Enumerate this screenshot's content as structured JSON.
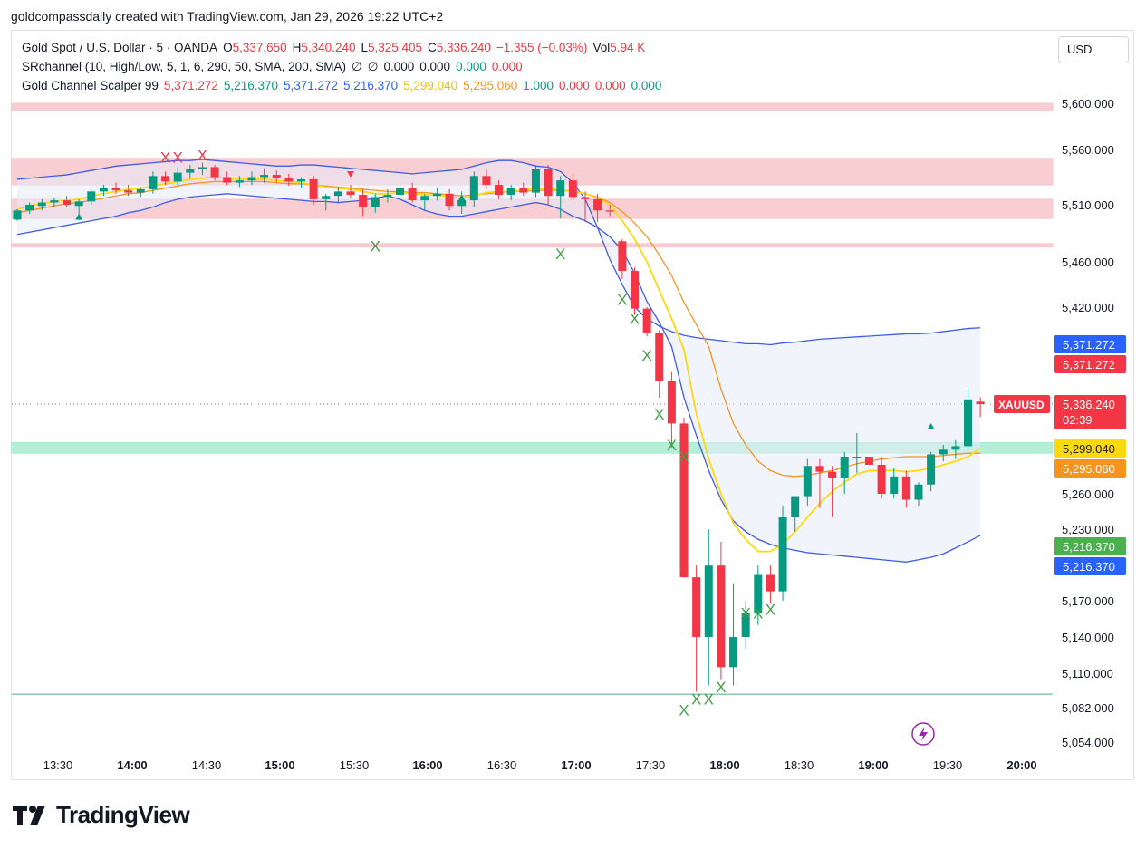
{
  "attribution": "goldcompassdaily created with TradingView.com, Jan 29, 2026 19:22 UTC+2",
  "currency_button": "USD",
  "legend": {
    "symbol_line": {
      "title": "Gold Spot / U.S. Dollar · 5 · OANDA",
      "o_label": "O",
      "o_value": "5,337.650",
      "h_label": "H",
      "h_value": "5,340.240",
      "l_label": "L",
      "l_value": "5,325.405",
      "c_label": "C",
      "c_value": "5,336.240",
      "change": "−1.355 (−0.03%)",
      "vol_label": "Vol",
      "vol_value": "5.94 K"
    },
    "sr_line": {
      "title": "SRchannel (10, High/Low, 5, 1, 6, 290, 50, SMA, 200, SMA)",
      "v1": "∅",
      "v2": "∅",
      "v3": "0.000",
      "v4": "0.000",
      "v5": "0.000",
      "v6": "0.000"
    },
    "gcs_line": {
      "title": "Gold Channel Scalper 99",
      "v1": "5,371.272",
      "v2": "5,216.370",
      "v3": "5,371.272",
      "v4": "5,216.370",
      "v5": "5,299.040",
      "v6": "5,295.060",
      "v7": "1.000",
      "v8": "0.000",
      "v9": "0.000",
      "v10": "0.000"
    }
  },
  "colors": {
    "up": "#089981",
    "down": "#f23645",
    "upper_band": "#3f5ce3",
    "yellow_ma": "#fbd90e",
    "orange_ma": "#f7931e",
    "resistance_zone": "#f7c5cb",
    "support_zone": "#a8ecd0",
    "signal_x_up": "#43a047",
    "signal_x_down": "#f23645"
  },
  "price_tags": [
    {
      "label": "5,371.272",
      "color": "#2962ff",
      "price": 5371.272
    },
    {
      "label": "5,371.272",
      "color": "#f23645",
      "price": 5371.272
    },
    {
      "label": "5,336.240",
      "sub": "02:39",
      "color": "#f23645",
      "price": 5336.24,
      "symbol": "XAUUSD"
    },
    {
      "label": "5,299.040",
      "color": "#fbd90e",
      "price": 5299.04
    },
    {
      "label": "5,295.060",
      "color": "#f7931e",
      "price": 5295.06
    },
    {
      "label": "5,216.370",
      "color": "#4caf50",
      "price": 5216.37
    },
    {
      "label": "5,216.370",
      "color": "#2962ff",
      "price": 5216.37
    }
  ],
  "chart_data": {
    "type": "candlestick",
    "title": "Gold Spot / U.S. Dollar · 5 · OANDA",
    "y_axis_ticks": [
      "5,600.000",
      "5,560.000",
      "5,510.000",
      "5,460.000",
      "5,420.000",
      "5,260.000",
      "5,230.000",
      "5,170.000",
      "5,140.000",
      "5,110.000",
      "5,082.000",
      "5,054.000"
    ],
    "y_tick_values": [
      5600,
      5560,
      5510,
      5460,
      5420,
      5260,
      5230,
      5170,
      5140,
      5110,
      5082,
      5054
    ],
    "x_axis_ticks": [
      {
        "label": "13:30",
        "bold": false
      },
      {
        "label": "14:00",
        "bold": true
      },
      {
        "label": "14:30",
        "bold": false
      },
      {
        "label": "15:00",
        "bold": true
      },
      {
        "label": "15:30",
        "bold": false
      },
      {
        "label": "16:00",
        "bold": true
      },
      {
        "label": "16:30",
        "bold": false
      },
      {
        "label": "17:00",
        "bold": true
      },
      {
        "label": "17:30",
        "bold": false
      },
      {
        "label": "18:00",
        "bold": true
      },
      {
        "label": "18:30",
        "bold": false
      },
      {
        "label": "19:00",
        "bold": true
      },
      {
        "label": "19:30",
        "bold": false
      },
      {
        "label": "20:00",
        "bold": true
      }
    ],
    "zones": [
      {
        "from": 5594,
        "to": 5600,
        "color": "#f7c5cb"
      },
      {
        "from": 5528,
        "to": 5552,
        "color": "#f7c5cb"
      },
      {
        "from": 5498,
        "to": 5515,
        "color": "#f7c5cb"
      },
      {
        "from": 5473,
        "to": 5476,
        "color": "#f7c5cb"
      },
      {
        "from": 5295,
        "to": 5304,
        "color": "#a8ecd0"
      }
    ],
    "support_line": 5093,
    "current_price_line": 5336.24,
    "candles": [
      [
        5497,
        5506,
        5496,
        5505
      ],
      [
        5505,
        5512,
        5502,
        5510
      ],
      [
        5509,
        5515,
        5505,
        5512
      ],
      [
        5512,
        5516,
        5508,
        5514
      ],
      [
        5514,
        5518,
        5508,
        5510
      ],
      [
        5509,
        5515,
        5502,
        5513
      ],
      [
        5513,
        5524,
        5510,
        5522
      ],
      [
        5522,
        5528,
        5518,
        5525
      ],
      [
        5525,
        5530,
        5520,
        5523
      ],
      [
        5523,
        5528,
        5518,
        5521
      ],
      [
        5521,
        5526,
        5517,
        5524
      ],
      [
        5524,
        5540,
        5520,
        5536
      ],
      [
        5536,
        5540,
        5528,
        5531
      ],
      [
        5531,
        5544,
        5528,
        5539
      ],
      [
        5539,
        5546,
        5534,
        5542
      ],
      [
        5542,
        5548,
        5537,
        5544
      ],
      [
        5544,
        5546,
        5532,
        5535
      ],
      [
        5535,
        5540,
        5528,
        5530
      ],
      [
        5530,
        5536,
        5526,
        5532
      ],
      [
        5532,
        5540,
        5528,
        5535
      ],
      [
        5535,
        5543,
        5530,
        5537
      ],
      [
        5537,
        5541,
        5530,
        5534
      ],
      [
        5534,
        5538,
        5527,
        5531
      ],
      [
        5531,
        5535,
        5525,
        5533
      ],
      [
        5533,
        5536,
        5510,
        5515
      ],
      [
        5515,
        5520,
        5505,
        5518
      ],
      [
        5518,
        5526,
        5512,
        5522
      ],
      [
        5522,
        5528,
        5516,
        5519
      ],
      [
        5519,
        5524,
        5500,
        5508
      ],
      [
        5508,
        5520,
        5503,
        5517
      ],
      [
        5517,
        5524,
        5512,
        5519
      ],
      [
        5519,
        5528,
        5515,
        5525
      ],
      [
        5525,
        5530,
        5512,
        5514
      ],
      [
        5514,
        5520,
        5505,
        5518
      ],
      [
        5518,
        5525,
        5514,
        5520
      ],
      [
        5520,
        5524,
        5505,
        5509
      ],
      [
        5509,
        5522,
        5502,
        5514
      ],
      [
        5514,
        5540,
        5508,
        5536
      ],
      [
        5536,
        5542,
        5524,
        5528
      ],
      [
        5528,
        5532,
        5515,
        5519
      ],
      [
        5519,
        5528,
        5514,
        5525
      ],
      [
        5525,
        5530,
        5518,
        5521
      ],
      [
        5521,
        5546,
        5517,
        5542
      ],
      [
        5542,
        5546,
        5510,
        5518
      ],
      [
        5518,
        5536,
        5498,
        5532
      ],
      [
        5532,
        5538,
        5514,
        5517
      ],
      [
        5517,
        5522,
        5495,
        5515
      ],
      [
        5515,
        5520,
        5495,
        5505
      ],
      [
        5505,
        5510,
        5500,
        5504
      ],
      [
        5478,
        5480,
        5445,
        5452
      ],
      [
        5452,
        5455,
        5410,
        5418
      ],
      [
        5418,
        5420,
        5382,
        5386
      ],
      [
        5386,
        5390,
        5340,
        5350
      ],
      [
        5350,
        5355,
        5300,
        5320
      ],
      [
        5320,
        5325,
        5190,
        5190
      ],
      [
        5190,
        5200,
        5095,
        5140
      ],
      [
        5140,
        5230,
        5100,
        5200
      ],
      [
        5200,
        5220,
        5105,
        5115
      ],
      [
        5115,
        5185,
        5100,
        5140
      ],
      [
        5140,
        5170,
        5130,
        5160
      ],
      [
        5160,
        5200,
        5150,
        5192
      ],
      [
        5192,
        5200,
        5168,
        5178
      ],
      [
        5178,
        5250,
        5170,
        5240
      ],
      [
        5240,
        5258,
        5228,
        5258
      ],
      [
        5258,
        5290,
        5250,
        5284
      ],
      [
        5284,
        5290,
        5248,
        5279
      ],
      [
        5279,
        5284,
        5240,
        5274
      ],
      [
        5274,
        5296,
        5260,
        5292
      ],
      [
        5292,
        5312,
        5278,
        5292
      ],
      [
        5292,
        5290,
        5285,
        5285
      ],
      [
        5285,
        5292,
        5256,
        5260
      ],
      [
        5260,
        5282,
        5256,
        5275
      ],
      [
        5275,
        5280,
        5248,
        5255
      ],
      [
        5255,
        5270,
        5250,
        5268
      ],
      [
        5268,
        5296,
        5262,
        5294
      ],
      [
        5294,
        5302,
        5288,
        5298
      ],
      [
        5298,
        5306,
        5290,
        5301
      ],
      [
        5301,
        5345,
        5298,
        5339
      ],
      [
        5337.65,
        5340.24,
        5325.405,
        5336.24
      ]
    ],
    "upper_band": [
      5484,
      5486,
      5488,
      5490,
      5492,
      5494,
      5496,
      5498,
      5500,
      5503,
      5505,
      5508,
      5512,
      5515,
      5517,
      5518,
      5519,
      5520,
      5519,
      5518,
      5517,
      5516,
      5515,
      5514,
      5513,
      5513,
      5512,
      5513,
      5514,
      5516,
      5518,
      5515,
      5510,
      5505,
      5502,
      5500,
      5500,
      5502,
      5504,
      5506,
      5508,
      5510,
      5512,
      5510,
      5506,
      5500,
      5496,
      5490,
      5482,
      5470,
      5450,
      5425,
      5400,
      5370,
      5340,
      5310,
      5280,
      5255,
      5237,
      5228,
      5222,
      5218,
      5215,
      5213,
      5211,
      5210,
      5209,
      5208,
      5207,
      5206,
      5205,
      5204,
      5203,
      5205,
      5207,
      5210,
      5215,
      5220,
      5225
    ],
    "band_top": [
      5533,
      5534,
      5535,
      5536,
      5537,
      5539,
      5541,
      5543,
      5545,
      5546,
      5547,
      5548,
      5549,
      5550,
      5550,
      5551,
      5550,
      5549,
      5548,
      5547,
      5546,
      5545,
      5545,
      5546,
      5546,
      5545,
      5544,
      5543,
      5542,
      5541,
      5540,
      5539,
      5538,
      5539,
      5540,
      5541,
      5542,
      5545,
      5548,
      5550,
      5550,
      5548,
      5545,
      5544,
      5540,
      5530,
      5515,
      5490,
      5462,
      5440,
      5420,
      5405,
      5395,
      5388,
      5383,
      5380,
      5378,
      5376,
      5374,
      5372,
      5372,
      5371,
      5373,
      5374,
      5376,
      5378,
      5379,
      5380,
      5381,
      5382,
      5383,
      5384,
      5385,
      5385,
      5386,
      5388,
      5390,
      5392,
      5393
    ],
    "yellow_ma": [
      5506,
      5509,
      5511,
      5513,
      5514,
      5515,
      5518,
      5520,
      5522,
      5524,
      5525,
      5527,
      5529,
      5531,
      5533,
      5534,
      5535,
      5534,
      5533,
      5533,
      5533,
      5532,
      5531,
      5530,
      5528,
      5526,
      5525,
      5524,
      5522,
      5520,
      5520,
      5521,
      5520,
      5519,
      5519,
      5517,
      5516,
      5518,
      5521,
      5522,
      5522,
      5523,
      5525,
      5524,
      5524,
      5522,
      5520,
      5516,
      5510,
      5496,
      5480,
      5460,
      5435,
      5405,
      5368,
      5328,
      5290,
      5260,
      5235,
      5222,
      5212,
      5212,
      5218,
      5228,
      5240,
      5252,
      5262,
      5270,
      5277,
      5280,
      5280,
      5280,
      5279,
      5280,
      5282,
      5285,
      5288,
      5292,
      5299
    ],
    "orange_ma": [
      5503,
      5505,
      5507,
      5509,
      5511,
      5512,
      5514,
      5516,
      5518,
      5520,
      5521,
      5523,
      5525,
      5527,
      5529,
      5530,
      5531,
      5531,
      5531,
      5531,
      5531,
      5530,
      5529,
      5529,
      5528,
      5527,
      5526,
      5525,
      5524,
      5523,
      5522,
      5522,
      5521,
      5521,
      5520,
      5519,
      5518,
      5519,
      5520,
      5521,
      5522,
      5522,
      5523,
      5523,
      5523,
      5522,
      5520,
      5517,
      5512,
      5504,
      5494,
      5482,
      5466,
      5448,
      5424,
      5397,
      5370,
      5345,
      5320,
      5302,
      5288,
      5280,
      5276,
      5275,
      5276,
      5278,
      5280,
      5283,
      5286,
      5288,
      5290,
      5291,
      5292,
      5292,
      5292,
      5293,
      5294,
      5295,
      5295
    ]
  }
}
